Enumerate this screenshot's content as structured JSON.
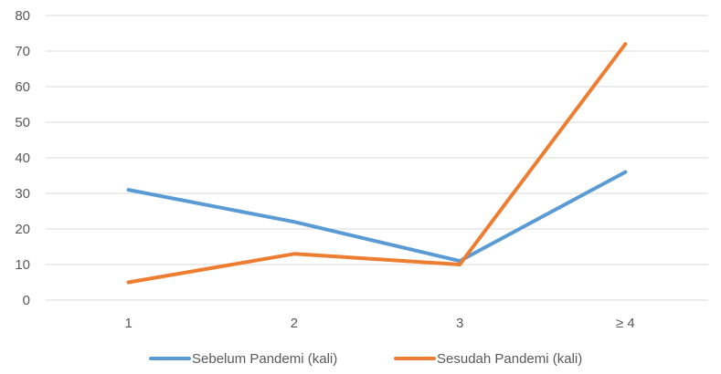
{
  "chart_data": {
    "type": "line",
    "title": "",
    "xlabel": "",
    "ylabel": "",
    "categories": [
      "1",
      "2",
      "3",
      "≥ 4"
    ],
    "ylim": [
      0,
      80
    ],
    "yticks": [
      0,
      10,
      20,
      30,
      40,
      50,
      60,
      70,
      80
    ],
    "grid": true,
    "legend_position": "bottom",
    "series": [
      {
        "name": "Sebelum Pandemi (kali)",
        "color": "#5b9bd5",
        "values": [
          31,
          22,
          11,
          36
        ]
      },
      {
        "name": "Sesudah Pandemi (kali)",
        "color": "#ed7d31",
        "values": [
          5,
          13,
          10,
          72
        ]
      }
    ]
  }
}
